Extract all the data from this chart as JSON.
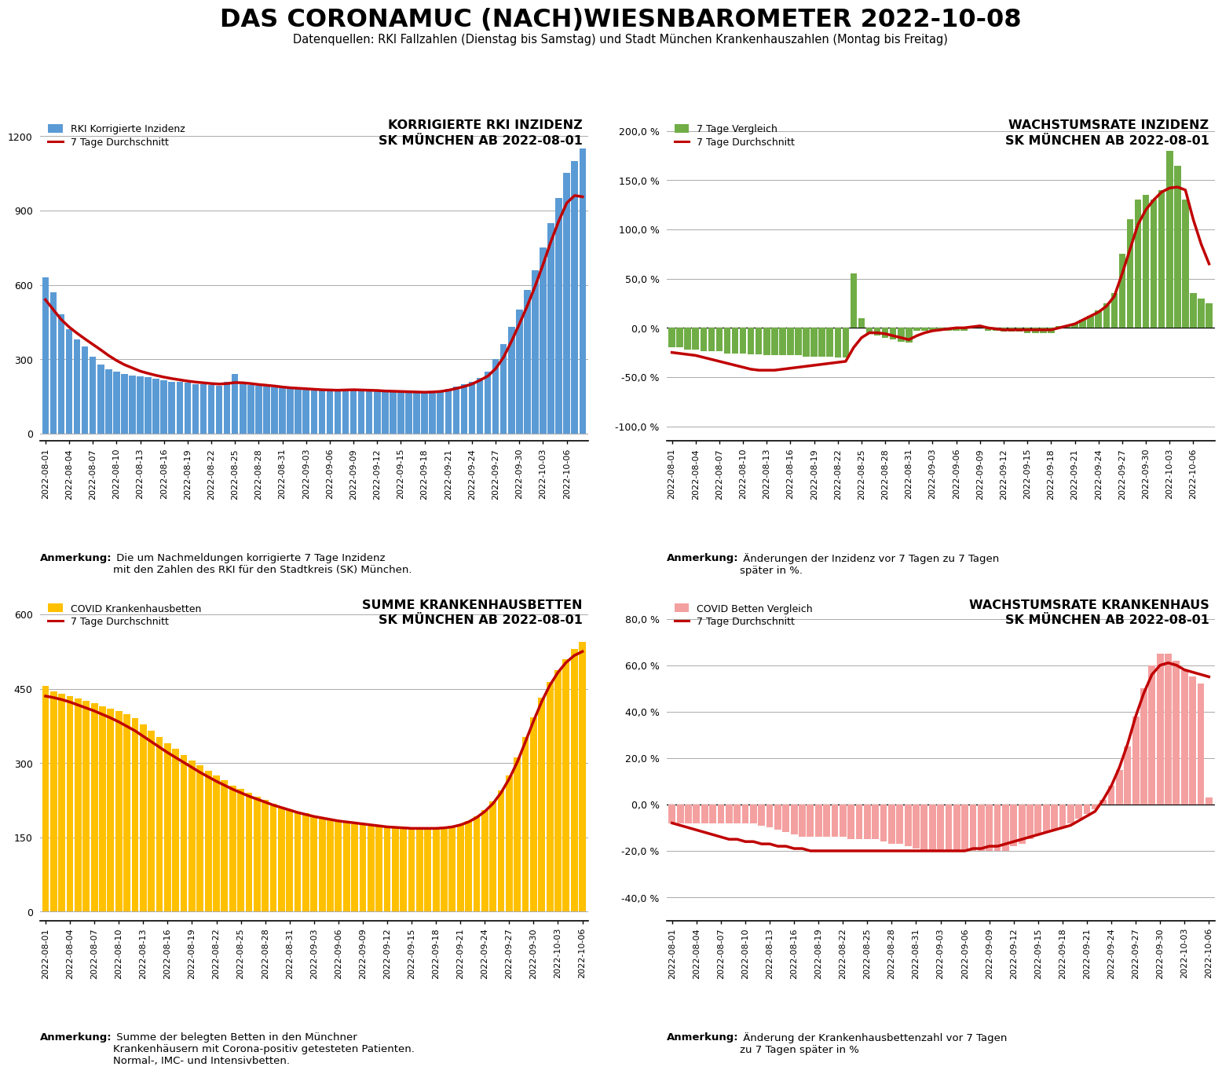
{
  "title": "DAS CORONAMUC (NACH)WIESNBAROMETER 2022-10-08",
  "subtitle": "Datenquellen: RKI Fallzahlen (Dienstag bis Samstag) und Stadt München Krankenhauszahlen (Montag bis Freitag)",
  "background_color": "#ffffff",
  "rki_dates": [
    "2022-08-01",
    "2022-08-02",
    "2022-08-03",
    "2022-08-04",
    "2022-08-05",
    "2022-08-06",
    "2022-08-07",
    "2022-08-08",
    "2022-08-09",
    "2022-08-10",
    "2022-08-11",
    "2022-08-12",
    "2022-08-13",
    "2022-08-14",
    "2022-08-15",
    "2022-08-16",
    "2022-08-17",
    "2022-08-18",
    "2022-08-19",
    "2022-08-20",
    "2022-08-21",
    "2022-08-22",
    "2022-08-23",
    "2022-08-24",
    "2022-08-25",
    "2022-08-26",
    "2022-08-27",
    "2022-08-28",
    "2022-08-29",
    "2022-08-30",
    "2022-08-31",
    "2022-09-01",
    "2022-09-02",
    "2022-09-03",
    "2022-09-04",
    "2022-09-05",
    "2022-09-06",
    "2022-09-07",
    "2022-09-08",
    "2022-09-09",
    "2022-09-10",
    "2022-09-11",
    "2022-09-12",
    "2022-09-13",
    "2022-09-14",
    "2022-09-15",
    "2022-09-16",
    "2022-09-17",
    "2022-09-18",
    "2022-09-19",
    "2022-09-20",
    "2022-09-21",
    "2022-09-22",
    "2022-09-23",
    "2022-09-24",
    "2022-09-25",
    "2022-09-26",
    "2022-09-27",
    "2022-09-28",
    "2022-09-29",
    "2022-09-30",
    "2022-10-01",
    "2022-10-02",
    "2022-10-03",
    "2022-10-04",
    "2022-10-05",
    "2022-10-06",
    "2022-10-07",
    "2022-10-08"
  ],
  "rki_values": [
    630,
    570,
    480,
    420,
    380,
    350,
    310,
    280,
    260,
    250,
    240,
    235,
    230,
    228,
    220,
    215,
    210,
    208,
    205,
    200,
    198,
    195,
    193,
    210,
    240,
    200,
    195,
    192,
    190,
    188,
    185,
    183,
    182,
    180,
    178,
    176,
    175,
    174,
    178,
    180,
    176,
    175,
    173,
    171,
    170,
    168,
    167,
    166,
    165,
    170,
    175,
    180,
    190,
    200,
    210,
    225,
    250,
    300,
    360,
    430,
    500,
    580,
    660,
    750,
    850,
    950,
    1050,
    1100,
    1150
  ],
  "rki_ma": [
    540,
    500,
    460,
    430,
    405,
    382,
    360,
    338,
    315,
    295,
    278,
    265,
    252,
    243,
    235,
    228,
    222,
    217,
    212,
    208,
    205,
    202,
    200,
    202,
    206,
    205,
    202,
    198,
    195,
    192,
    188,
    185,
    183,
    181,
    179,
    177,
    176,
    175,
    176,
    177,
    176,
    175,
    174,
    172,
    171,
    170,
    169,
    168,
    167,
    168,
    170,
    175,
    182,
    190,
    200,
    215,
    232,
    262,
    308,
    372,
    442,
    515,
    595,
    682,
    775,
    858,
    930,
    960,
    955
  ],
  "growth_rki_values": [
    -20,
    -20,
    -22,
    -22,
    -24,
    -24,
    -24,
    -26,
    -26,
    -26,
    -27,
    -27,
    -28,
    -28,
    -28,
    -28,
    -28,
    -29,
    -29,
    -29,
    -29,
    -30,
    -30,
    55,
    10,
    -5,
    -8,
    -10,
    -12,
    -14,
    -15,
    -3,
    -3,
    -3,
    -3,
    -3,
    -3,
    -3,
    0,
    2,
    -3,
    -3,
    -4,
    -4,
    -4,
    -5,
    -5,
    -5,
    -5,
    2,
    3,
    4,
    8,
    12,
    18,
    25,
    35,
    75,
    110,
    130,
    135,
    130,
    140,
    180,
    165,
    130,
    35,
    30,
    25
  ],
  "growth_rki_ma": [
    -25,
    -26,
    -27,
    -28,
    -30,
    -32,
    -34,
    -36,
    -38,
    -40,
    -42,
    -43,
    -43,
    -43,
    -42,
    -41,
    -40,
    -39,
    -38,
    -37,
    -36,
    -35,
    -34,
    -20,
    -10,
    -5,
    -5,
    -6,
    -8,
    -10,
    -12,
    -8,
    -5,
    -3,
    -2,
    -1,
    0,
    0,
    1,
    2,
    0,
    -1,
    -2,
    -2,
    -2,
    -2,
    -2,
    -2,
    -2,
    0,
    2,
    4,
    8,
    12,
    16,
    22,
    32,
    55,
    80,
    105,
    120,
    130,
    138,
    142,
    143,
    140,
    110,
    85,
    65
  ],
  "hosp_dates": [
    "2022-08-01",
    "2022-08-02",
    "2022-08-03",
    "2022-08-04",
    "2022-08-05",
    "2022-08-06",
    "2022-08-07",
    "2022-08-08",
    "2022-08-09",
    "2022-08-10",
    "2022-08-11",
    "2022-08-12",
    "2022-08-13",
    "2022-08-14",
    "2022-08-15",
    "2022-08-16",
    "2022-08-17",
    "2022-08-18",
    "2022-08-19",
    "2022-08-20",
    "2022-08-21",
    "2022-08-22",
    "2022-08-23",
    "2022-08-24",
    "2022-08-25",
    "2022-08-26",
    "2022-08-27",
    "2022-08-28",
    "2022-08-29",
    "2022-08-30",
    "2022-08-31",
    "2022-09-01",
    "2022-09-02",
    "2022-09-03",
    "2022-09-04",
    "2022-09-05",
    "2022-09-06",
    "2022-09-07",
    "2022-09-08",
    "2022-09-09",
    "2022-09-10",
    "2022-09-11",
    "2022-09-12",
    "2022-09-13",
    "2022-09-14",
    "2022-09-15",
    "2022-09-16",
    "2022-09-17",
    "2022-09-18",
    "2022-09-19",
    "2022-09-20",
    "2022-09-21",
    "2022-09-22",
    "2022-09-23",
    "2022-09-24",
    "2022-09-25",
    "2022-09-26",
    "2022-09-27",
    "2022-09-28",
    "2022-09-29",
    "2022-09-30",
    "2022-10-01",
    "2022-10-02",
    "2022-10-03",
    "2022-10-04",
    "2022-10-05",
    "2022-10-06"
  ],
  "hosp_values": [
    455,
    445,
    440,
    435,
    430,
    425,
    420,
    415,
    410,
    405,
    398,
    390,
    378,
    365,
    353,
    340,
    328,
    316,
    305,
    295,
    285,
    275,
    265,
    255,
    248,
    240,
    232,
    225,
    218,
    212,
    206,
    202,
    198,
    194,
    190,
    186,
    183,
    180,
    177,
    175,
    173,
    171,
    170,
    169,
    168,
    168,
    167,
    167,
    168,
    170,
    173,
    177,
    183,
    192,
    205,
    222,
    245,
    275,
    312,
    352,
    393,
    432,
    463,
    488,
    510,
    530,
    545
  ],
  "hosp_ma": [
    435,
    432,
    428,
    423,
    417,
    411,
    405,
    398,
    391,
    383,
    374,
    365,
    354,
    343,
    332,
    321,
    311,
    301,
    291,
    281,
    272,
    263,
    255,
    247,
    240,
    233,
    227,
    221,
    215,
    210,
    205,
    200,
    196,
    192,
    189,
    186,
    183,
    181,
    179,
    177,
    175,
    173,
    171,
    170,
    169,
    168,
    168,
    168,
    168,
    169,
    171,
    175,
    181,
    190,
    202,
    218,
    240,
    268,
    302,
    343,
    385,
    424,
    457,
    483,
    503,
    517,
    525
  ],
  "growth_hosp_values": [
    -8,
    -8,
    -8,
    -8,
    -8,
    -8,
    -8,
    -8,
    -8,
    -8,
    -8,
    -9,
    -10,
    -11,
    -12,
    -13,
    -14,
    -14,
    -14,
    -14,
    -14,
    -14,
    -15,
    -15,
    -15,
    -15,
    -16,
    -17,
    -17,
    -18,
    -19,
    -20,
    -20,
    -20,
    -20,
    -20,
    -20,
    -20,
    -20,
    -20,
    -20,
    -20,
    -18,
    -17,
    -15,
    -13,
    -12,
    -11,
    -10,
    -8,
    -6,
    -4,
    -2,
    2,
    8,
    15,
    25,
    38,
    50,
    60,
    65,
    65,
    62,
    58,
    55,
    52,
    3
  ],
  "growth_hosp_ma": [
    -8,
    -9,
    -10,
    -11,
    -12,
    -13,
    -14,
    -15,
    -15,
    -16,
    -16,
    -17,
    -17,
    -18,
    -18,
    -19,
    -19,
    -20,
    -20,
    -20,
    -20,
    -20,
    -20,
    -20,
    -20,
    -20,
    -20,
    -20,
    -20,
    -20,
    -20,
    -20,
    -20,
    -20,
    -20,
    -20,
    -20,
    -19,
    -19,
    -18,
    -18,
    -17,
    -16,
    -15,
    -14,
    -13,
    -12,
    -11,
    -10,
    -9,
    -7,
    -5,
    -3,
    2,
    8,
    16,
    26,
    38,
    48,
    56,
    60,
    61,
    60,
    58,
    57,
    56,
    55
  ],
  "plot1_title": "KORRIGIERTE RKI INZIDENZ\nSK MÜNCHEN AB 2022-08-01",
  "plot2_title": "WACHSTUMSRATE INZIDENZ\nSK MÜNCHEN AB 2022-08-01",
  "plot3_title": "SUMME KRANKENHAUSBETTEN\nSK MÜNCHEN AB 2022-08-01",
  "plot4_title": "WACHSTUMSRATE KRANKENHAUS\nSK MÜNCHEN AB 2022-08-01",
  "plot1_note_bold": "Anmerkung:",
  "plot1_note_rest": " Die um Nachmeldungen korrigierte 7 Tage Inzidenz\nmit den Zahlen des RKI für den Stadtkreis (SK) München.",
  "plot2_note_bold": "Anmerkung:",
  "plot2_note_rest": " Änderungen der Inzidenz vor 7 Tagen zu 7 Tagen\nspäter in %.",
  "plot3_note_bold": "Anmerkung:",
  "plot3_note_rest": " Summe der belegten Betten in den Münchner\nKrankenhäusern mit Corona-positiv getesteten Patienten.\nNormal-, IMC- und Intensivbetten.",
  "plot4_note_bold": "Anmerkung:",
  "plot4_note_rest": " Änderung der Krankenhausbettenzahl vor 7 Tagen\nzu 7 Tagen später in %",
  "plot1_legend1": "RKI Korrigierte Inzidenz",
  "plot1_legend2": "7 Tage Durchschnitt",
  "plot2_legend1": "7 Tage Vergleich",
  "plot2_legend2": "7 Tage Durchschnitt",
  "plot3_legend1": "COVID Krankenhausbetten",
  "plot3_legend2": "7 Tage Durchschnitt",
  "plot4_legend1": "COVID Betten Vergleich",
  "plot4_legend2": "7 Tage Durchschnitt",
  "bar_color_blue": "#5b9bd5",
  "bar_color_green": "#70ad47",
  "bar_color_yellow": "#ffc000",
  "bar_color_salmon": "#f4a0a0",
  "line_color_red": "#c00000",
  "plot1_yticks": [
    0,
    300,
    600,
    900,
    1200
  ],
  "plot2_yticks": [
    -100.0,
    -50.0,
    0.0,
    50.0,
    100.0,
    150.0,
    200.0
  ],
  "plot3_yticks": [
    0,
    150,
    300,
    450,
    600
  ],
  "plot4_yticks": [
    -40.0,
    -20.0,
    0.0,
    20.0,
    40.0,
    60.0,
    80.0
  ],
  "plot1_ylim": [
    -30,
    1280
  ],
  "plot2_ylim": [
    -115,
    215
  ],
  "plot3_ylim": [
    -18,
    638
  ],
  "plot4_ylim": [
    -50,
    90
  ],
  "tick_dates_rki": [
    "2022-08-01",
    "2022-08-04",
    "2022-08-07",
    "2022-08-10",
    "2022-08-13",
    "2022-08-16",
    "2022-08-19",
    "2022-08-22",
    "2022-08-25",
    "2022-08-28",
    "2022-08-31",
    "2022-09-03",
    "2022-09-06",
    "2022-09-09",
    "2022-09-12",
    "2022-09-15",
    "2022-09-18",
    "2022-09-21",
    "2022-09-24",
    "2022-09-27",
    "2022-09-30",
    "2022-10-03",
    "2022-10-06"
  ],
  "tick_dates_hosp": [
    "2022-08-01",
    "2022-08-04",
    "2022-08-07",
    "2022-08-10",
    "2022-08-13",
    "2022-08-16",
    "2022-08-19",
    "2022-08-22",
    "2022-08-25",
    "2022-08-28",
    "2022-08-31",
    "2022-09-03",
    "2022-09-06",
    "2022-09-09",
    "2022-09-12",
    "2022-09-15",
    "2022-09-18",
    "2022-09-21",
    "2022-09-24",
    "2022-09-27",
    "2022-09-30",
    "2022-10-03",
    "2022-10-06"
  ]
}
